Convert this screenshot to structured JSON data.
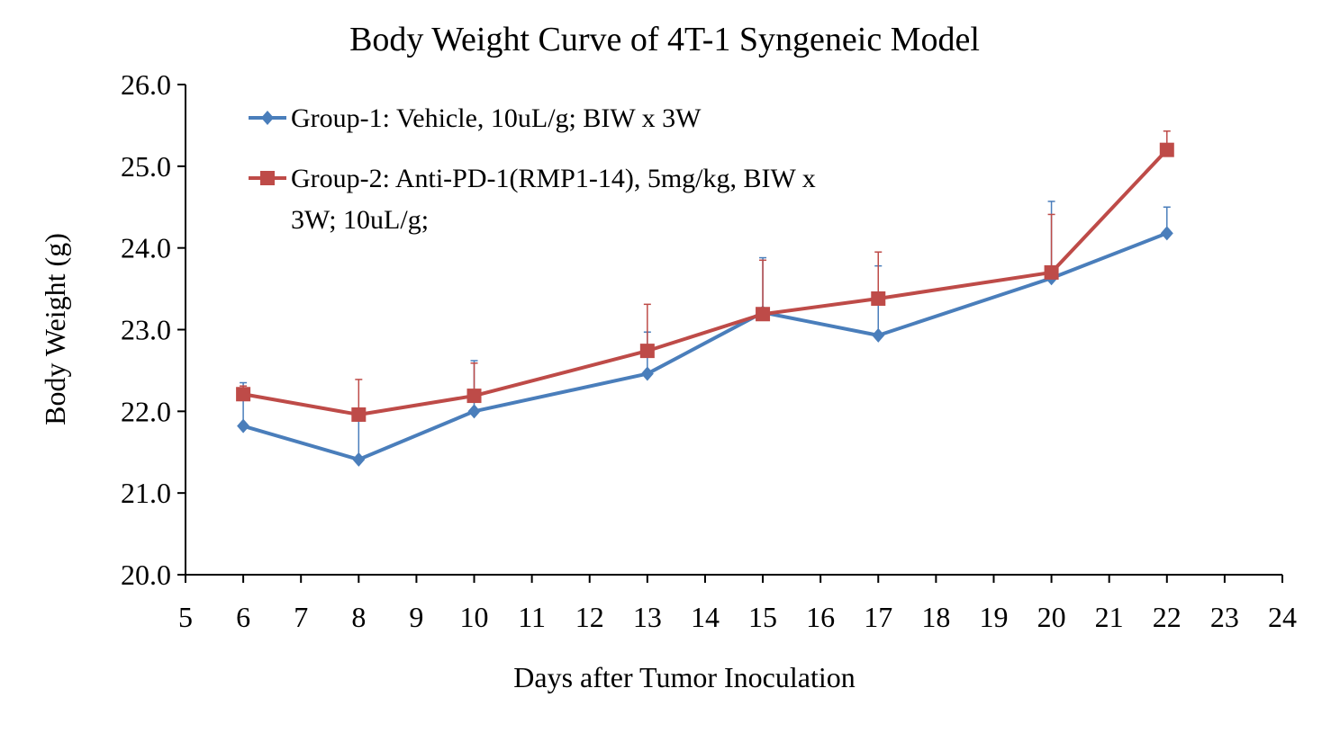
{
  "chart_data": {
    "type": "line",
    "title": "Body Weight Curve of 4T-1 Syngeneic Model",
    "xlabel": "Days after Tumor Inoculation",
    "ylabel": "Body Weight (g)",
    "xlim": [
      5,
      24
    ],
    "ylim": [
      20.0,
      26.0
    ],
    "x_ticks": [
      5,
      6,
      7,
      8,
      9,
      10,
      11,
      12,
      13,
      14,
      15,
      16,
      17,
      18,
      19,
      20,
      21,
      22,
      23,
      24
    ],
    "y_ticks": [
      "20.0",
      "21.0",
      "22.0",
      "23.0",
      "24.0",
      "25.0",
      "26.0"
    ],
    "grid": false,
    "legend_position": "top-left",
    "x": [
      6,
      8,
      10,
      13,
      15,
      17,
      20,
      22
    ],
    "series": [
      {
        "name": "Group-1: Vehicle, 10uL/g; BIW x 3W",
        "legend_lines": [
          "Group-1: Vehicle, 10uL/g; BIW x 3W"
        ],
        "color": "#4A7EBB",
        "marker": "diamond",
        "values": [
          21.82,
          21.41,
          22.0,
          22.46,
          23.21,
          22.93,
          23.63,
          24.18
        ],
        "errors": [
          0.53,
          0.47,
          0.62,
          0.51,
          0.67,
          0.85,
          0.94,
          0.32
        ]
      },
      {
        "name": "Group-2: Anti-PD-1(RMP1-14), 5mg/kg, BIW x 3W; 10uL/g;",
        "legend_lines": [
          "Group-2: Anti-PD-1(RMP1-14), 5mg/kg, BIW x",
          "3W; 10uL/g;"
        ],
        "color": "#BE4B48",
        "marker": "square",
        "values": [
          22.21,
          21.96,
          22.19,
          22.74,
          23.19,
          23.38,
          23.7,
          25.2
        ],
        "errors": [
          0.1,
          0.43,
          0.4,
          0.57,
          0.66,
          0.57,
          0.71,
          0.23
        ]
      }
    ]
  }
}
